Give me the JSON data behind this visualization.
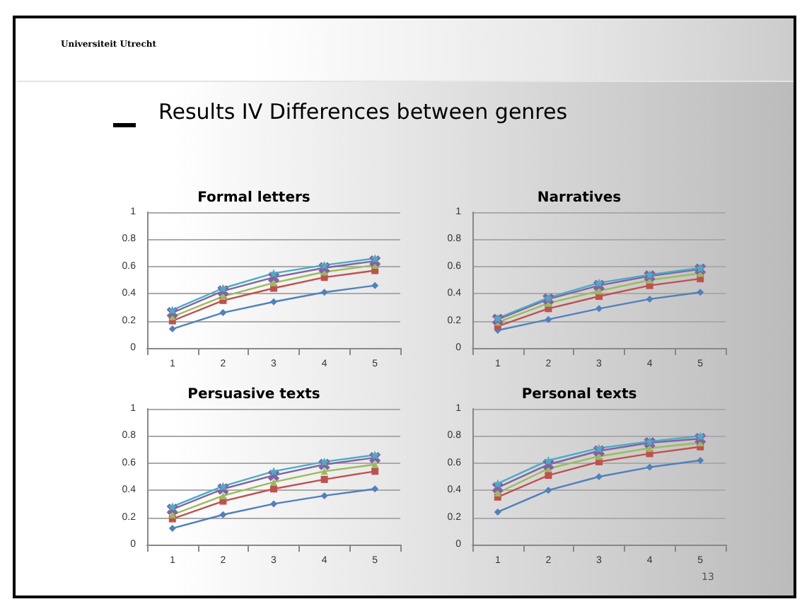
{
  "chart_data": [
    {
      "type": "other",
      "title": "Results IV  Differences between genres",
      "annotations": [
        "Universiteit Utrecht",
        "13"
      ]
    },
    {
      "type": "line",
      "title": "Formal letters",
      "categories": [
        "1",
        "2",
        "3",
        "4",
        "5"
      ],
      "ylim": [
        0,
        1
      ],
      "yticks": [
        0,
        0.2,
        0.4,
        0.6,
        0.8,
        1
      ],
      "grid": "y",
      "series": [
        {
          "color": "#4f81bd",
          "marker": "diamond",
          "values": [
            0.14,
            0.26,
            0.34,
            0.41,
            0.46
          ]
        },
        {
          "color": "#c0504d",
          "marker": "square",
          "values": [
            0.2,
            0.35,
            0.44,
            0.52,
            0.57
          ]
        },
        {
          "color": "#9bbb59",
          "marker": "triangle",
          "values": [
            0.23,
            0.38,
            0.48,
            0.56,
            0.61
          ]
        },
        {
          "color": "#8064a2",
          "marker": "cross",
          "values": [
            0.26,
            0.42,
            0.52,
            0.59,
            0.64
          ]
        },
        {
          "color": "#4bacc6",
          "marker": "star",
          "values": [
            0.28,
            0.44,
            0.55,
            0.61,
            0.66
          ]
        }
      ]
    },
    {
      "type": "line",
      "title": "Narratives",
      "categories": [
        "1",
        "2",
        "3",
        "4",
        "5"
      ],
      "ylim": [
        0,
        1
      ],
      "yticks": [
        0,
        0.2,
        0.4,
        0.6,
        0.8,
        1
      ],
      "grid": "y",
      "series": [
        {
          "color": "#4f81bd",
          "marker": "diamond",
          "values": [
            0.13,
            0.21,
            0.29,
            0.36,
            0.41
          ]
        },
        {
          "color": "#c0504d",
          "marker": "square",
          "values": [
            0.16,
            0.29,
            0.38,
            0.46,
            0.51
          ]
        },
        {
          "color": "#9bbb59",
          "marker": "triangle",
          "values": [
            0.19,
            0.33,
            0.42,
            0.5,
            0.55
          ]
        },
        {
          "color": "#8064a2",
          "marker": "cross",
          "values": [
            0.21,
            0.36,
            0.46,
            0.53,
            0.58
          ]
        },
        {
          "color": "#4bacc6",
          "marker": "star",
          "values": [
            0.22,
            0.37,
            0.48,
            0.54,
            0.59
          ]
        }
      ]
    },
    {
      "type": "line",
      "title": "Persuasive texts",
      "categories": [
        "1",
        "2",
        "3",
        "4",
        "5"
      ],
      "ylim": [
        0,
        1
      ],
      "yticks": [
        0,
        0.2,
        0.4,
        0.6,
        0.8,
        1
      ],
      "grid": "y",
      "series": [
        {
          "color": "#4f81bd",
          "marker": "diamond",
          "values": [
            0.12,
            0.22,
            0.3,
            0.36,
            0.41
          ]
        },
        {
          "color": "#c0504d",
          "marker": "square",
          "values": [
            0.19,
            0.32,
            0.41,
            0.48,
            0.54
          ]
        },
        {
          "color": "#9bbb59",
          "marker": "triangle",
          "values": [
            0.22,
            0.36,
            0.46,
            0.54,
            0.59
          ]
        },
        {
          "color": "#8064a2",
          "marker": "cross",
          "values": [
            0.26,
            0.41,
            0.51,
            0.59,
            0.64
          ]
        },
        {
          "color": "#4bacc6",
          "marker": "star",
          "values": [
            0.28,
            0.43,
            0.54,
            0.61,
            0.66
          ]
        }
      ]
    },
    {
      "type": "line",
      "title": "Personal texts",
      "categories": [
        "1",
        "2",
        "3",
        "4",
        "5"
      ],
      "ylim": [
        0,
        1
      ],
      "yticks": [
        0,
        0.2,
        0.4,
        0.6,
        0.8,
        1
      ],
      "grid": "y",
      "series": [
        {
          "color": "#4f81bd",
          "marker": "diamond",
          "values": [
            0.24,
            0.4,
            0.5,
            0.57,
            0.62
          ]
        },
        {
          "color": "#c0504d",
          "marker": "square",
          "values": [
            0.35,
            0.51,
            0.61,
            0.67,
            0.72
          ]
        },
        {
          "color": "#9bbb59",
          "marker": "triangle",
          "values": [
            0.38,
            0.56,
            0.65,
            0.71,
            0.75
          ]
        },
        {
          "color": "#8064a2",
          "marker": "cross",
          "values": [
            0.42,
            0.59,
            0.69,
            0.75,
            0.78
          ]
        },
        {
          "color": "#4bacc6",
          "marker": "star",
          "values": [
            0.45,
            0.62,
            0.71,
            0.76,
            0.8
          ]
        }
      ]
    }
  ]
}
